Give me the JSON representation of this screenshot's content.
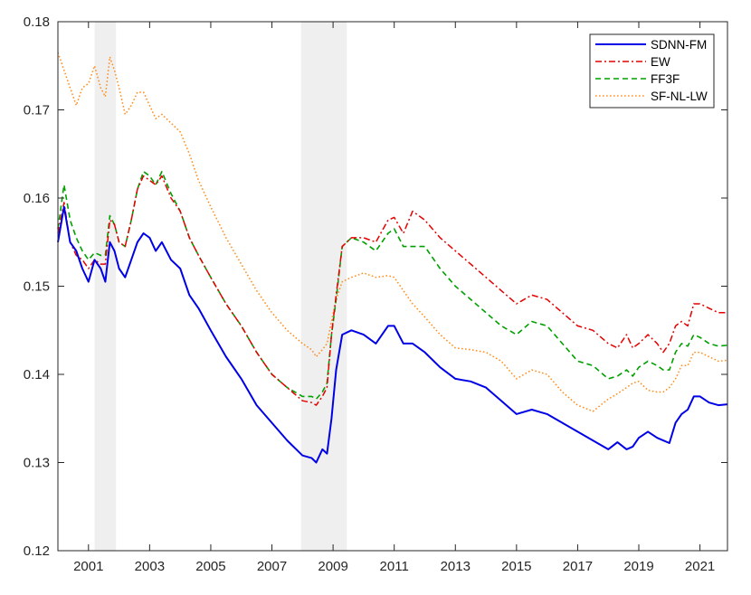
{
  "chart_data": {
    "type": "line",
    "title": "",
    "xlabel": "",
    "ylabel": "",
    "xlim": [
      2000.0,
      2021.9
    ],
    "ylim": [
      0.12,
      0.18
    ],
    "x_ticks": [
      2001,
      2003,
      2005,
      2007,
      2009,
      2011,
      2013,
      2015,
      2017,
      2019,
      2021
    ],
    "x_tick_labels": [
      "2001",
      "2003",
      "2005",
      "2007",
      "2009",
      "2011",
      "2013",
      "2015",
      "2017",
      "2019",
      "2021"
    ],
    "y_ticks": [
      0.12,
      0.13,
      0.14,
      0.15,
      0.16,
      0.17,
      0.18
    ],
    "y_tick_labels": [
      "0.12",
      "0.13",
      "0.14",
      "0.15",
      "0.16",
      "0.17",
      "0.18"
    ],
    "grid": false,
    "legend_position": "top-right",
    "shaded_periods": [
      {
        "start": 2001.2,
        "end": 2001.9
      },
      {
        "start": 2007.95,
        "end": 2009.45
      }
    ],
    "series": [
      {
        "name": "SDNN-FM",
        "color": "#0000e6",
        "style": "solid",
        "x": [
          2000.0,
          2000.2,
          2000.4,
          2000.6,
          2000.8,
          2001.0,
          2001.2,
          2001.4,
          2001.55,
          2001.7,
          2001.85,
          2002.0,
          2002.2,
          2002.4,
          2002.6,
          2002.8,
          2003.0,
          2003.2,
          2003.4,
          2003.7,
          2004.0,
          2004.3,
          2004.6,
          2005.0,
          2005.5,
          2006.0,
          2006.5,
          2007.0,
          2007.5,
          2008.0,
          2008.3,
          2008.45,
          2008.65,
          2008.8,
          2008.95,
          2009.1,
          2009.3,
          2009.6,
          2010.0,
          2010.4,
          2010.8,
          2011.0,
          2011.3,
          2011.6,
          2012.0,
          2012.5,
          2013.0,
          2013.5,
          2014.0,
          2014.5,
          2015.0,
          2015.5,
          2016.0,
          2016.5,
          2017.0,
          2017.5,
          2018.0,
          2018.3,
          2018.6,
          2018.8,
          2019.0,
          2019.3,
          2019.6,
          2019.8,
          2020.0,
          2020.2,
          2020.4,
          2020.6,
          2020.8,
          2021.0,
          2021.3,
          2021.6,
          2021.9
        ],
        "y": [
          0.155,
          0.159,
          0.155,
          0.154,
          0.152,
          0.1505,
          0.153,
          0.152,
          0.1505,
          0.155,
          0.154,
          0.152,
          0.151,
          0.153,
          0.155,
          0.156,
          0.1555,
          0.154,
          0.155,
          0.153,
          0.152,
          0.149,
          0.1475,
          0.145,
          0.142,
          0.1395,
          0.1365,
          0.1345,
          0.1325,
          0.1308,
          0.1305,
          0.13,
          0.1315,
          0.131,
          0.135,
          0.1405,
          0.1445,
          0.145,
          0.1445,
          0.1435,
          0.1455,
          0.1455,
          0.1435,
          0.1435,
          0.1425,
          0.1408,
          0.1395,
          0.1392,
          0.1385,
          0.137,
          0.1355,
          0.136,
          0.1355,
          0.1345,
          0.1335,
          0.1325,
          0.1315,
          0.1323,
          0.1315,
          0.1318,
          0.1328,
          0.1335,
          0.1328,
          0.1325,
          0.1322,
          0.1345,
          0.1355,
          0.136,
          0.1375,
          0.1375,
          0.1368,
          0.1365,
          0.1366
        ]
      },
      {
        "name": "EW",
        "color": "#e60000",
        "style": "dashdot",
        "x": [
          2000.0,
          2000.2,
          2000.4,
          2000.6,
          2000.8,
          2001.0,
          2001.2,
          2001.4,
          2001.55,
          2001.7,
          2001.85,
          2002.0,
          2002.2,
          2002.4,
          2002.6,
          2002.8,
          2003.0,
          2003.2,
          2003.4,
          2003.7,
          2004.0,
          2004.3,
          2004.6,
          2005.0,
          2005.5,
          2006.0,
          2006.5,
          2007.0,
          2007.5,
          2008.0,
          2008.3,
          2008.45,
          2008.65,
          2008.8,
          2008.95,
          2009.1,
          2009.3,
          2009.6,
          2010.0,
          2010.4,
          2010.8,
          2011.0,
          2011.3,
          2011.6,
          2012.0,
          2012.5,
          2013.0,
          2013.5,
          2014.0,
          2014.5,
          2015.0,
          2015.5,
          2016.0,
          2016.5,
          2017.0,
          2017.5,
          2018.0,
          2018.3,
          2018.6,
          2018.8,
          2019.0,
          2019.3,
          2019.6,
          2019.8,
          2020.0,
          2020.2,
          2020.4,
          2020.6,
          2020.8,
          2021.0,
          2021.3,
          2021.6,
          2021.9
        ],
        "y": [
          0.156,
          0.1595,
          0.155,
          0.1535,
          0.153,
          0.152,
          0.153,
          0.1525,
          0.1525,
          0.1575,
          0.157,
          0.155,
          0.1545,
          0.1575,
          0.161,
          0.1625,
          0.162,
          0.1615,
          0.1625,
          0.16,
          0.1585,
          0.1555,
          0.1535,
          0.151,
          0.148,
          0.1455,
          0.1425,
          0.14,
          0.1385,
          0.137,
          0.1368,
          0.1365,
          0.1375,
          0.1385,
          0.1445,
          0.149,
          0.1545,
          0.1555,
          0.1555,
          0.155,
          0.1575,
          0.1578,
          0.156,
          0.1585,
          0.1575,
          0.1555,
          0.154,
          0.1525,
          0.151,
          0.1495,
          0.148,
          0.149,
          0.1485,
          0.147,
          0.1455,
          0.145,
          0.1435,
          0.143,
          0.1445,
          0.143,
          0.1435,
          0.1445,
          0.1435,
          0.1425,
          0.1435,
          0.1455,
          0.146,
          0.1455,
          0.148,
          0.148,
          0.1475,
          0.147,
          0.147
        ]
      },
      {
        "name": "FF3F",
        "color": "#00a000",
        "style": "dashed",
        "x": [
          2000.0,
          2000.2,
          2000.4,
          2000.6,
          2000.8,
          2001.0,
          2001.2,
          2001.4,
          2001.55,
          2001.7,
          2001.85,
          2002.0,
          2002.2,
          2002.4,
          2002.6,
          2002.8,
          2003.0,
          2003.2,
          2003.4,
          2003.7,
          2004.0,
          2004.3,
          2004.6,
          2005.0,
          2005.5,
          2006.0,
          2006.5,
          2007.0,
          2007.5,
          2008.0,
          2008.3,
          2008.45,
          2008.65,
          2008.8,
          2008.95,
          2009.1,
          2009.3,
          2009.6,
          2010.0,
          2010.4,
          2010.8,
          2011.0,
          2011.3,
          2011.6,
          2012.0,
          2012.5,
          2013.0,
          2013.5,
          2014.0,
          2014.5,
          2015.0,
          2015.5,
          2016.0,
          2016.5,
          2017.0,
          2017.5,
          2018.0,
          2018.3,
          2018.6,
          2018.8,
          2019.0,
          2019.3,
          2019.6,
          2019.8,
          2020.0,
          2020.2,
          2020.4,
          2020.6,
          2020.8,
          2021.0,
          2021.3,
          2021.6,
          2021.9
        ],
        "y": [
          0.1565,
          0.1615,
          0.1575,
          0.1555,
          0.154,
          0.153,
          0.1538,
          0.1535,
          0.1535,
          0.158,
          0.157,
          0.155,
          0.1545,
          0.1575,
          0.161,
          0.163,
          0.1625,
          0.1615,
          0.163,
          0.1605,
          0.1585,
          0.1555,
          0.1535,
          0.151,
          0.148,
          0.1455,
          0.1425,
          0.14,
          0.1385,
          0.1375,
          0.1375,
          0.1372,
          0.138,
          0.139,
          0.1445,
          0.1485,
          0.1545,
          0.1555,
          0.155,
          0.154,
          0.156,
          0.1565,
          0.1545,
          0.1545,
          0.1545,
          0.152,
          0.15,
          0.1485,
          0.147,
          0.1455,
          0.1445,
          0.146,
          0.1455,
          0.1435,
          0.1415,
          0.141,
          0.1395,
          0.1398,
          0.1405,
          0.1398,
          0.1408,
          0.1415,
          0.141,
          0.1405,
          0.1405,
          0.1425,
          0.1435,
          0.1432,
          0.1445,
          0.1442,
          0.1435,
          0.1432,
          0.1433
        ]
      },
      {
        "name": "SF-NL-LW",
        "color": "#ff8c1a",
        "style": "dotted",
        "x": [
          2000.0,
          2000.2,
          2000.4,
          2000.6,
          2000.8,
          2001.0,
          2001.2,
          2001.4,
          2001.55,
          2001.7,
          2001.85,
          2002.0,
          2002.2,
          2002.4,
          2002.6,
          2002.8,
          2003.0,
          2003.2,
          2003.4,
          2003.7,
          2004.0,
          2004.3,
          2004.6,
          2005.0,
          2005.5,
          2006.0,
          2006.5,
          2007.0,
          2007.5,
          2008.0,
          2008.3,
          2008.45,
          2008.65,
          2008.8,
          2008.95,
          2009.1,
          2009.3,
          2009.6,
          2010.0,
          2010.4,
          2010.8,
          2011.0,
          2011.3,
          2011.6,
          2012.0,
          2012.5,
          2013.0,
          2013.5,
          2014.0,
          2014.5,
          2015.0,
          2015.5,
          2016.0,
          2016.5,
          2017.0,
          2017.5,
          2018.0,
          2018.3,
          2018.6,
          2018.8,
          2019.0,
          2019.3,
          2019.6,
          2019.8,
          2020.0,
          2020.2,
          2020.4,
          2020.6,
          2020.8,
          2021.0,
          2021.3,
          2021.6,
          2021.9
        ],
        "y": [
          0.1765,
          0.1745,
          0.1725,
          0.1705,
          0.1725,
          0.173,
          0.175,
          0.1725,
          0.1715,
          0.176,
          0.1745,
          0.1725,
          0.1695,
          0.1705,
          0.172,
          0.172,
          0.1705,
          0.169,
          0.1695,
          0.1685,
          0.1675,
          0.165,
          0.162,
          0.159,
          0.1555,
          0.1525,
          0.1495,
          0.147,
          0.145,
          0.1435,
          0.1428,
          0.142,
          0.1428,
          0.1435,
          0.146,
          0.1485,
          0.1505,
          0.151,
          0.1515,
          0.151,
          0.1512,
          0.151,
          0.1495,
          0.148,
          0.1465,
          0.1445,
          0.143,
          0.1428,
          0.1425,
          0.1415,
          0.1395,
          0.1405,
          0.14,
          0.138,
          0.1365,
          0.1358,
          0.1372,
          0.1378,
          0.1385,
          0.139,
          0.1392,
          0.1382,
          0.138,
          0.138,
          0.1385,
          0.1395,
          0.141,
          0.141,
          0.1425,
          0.1425,
          0.142,
          0.1415,
          0.1416
        ]
      }
    ]
  }
}
